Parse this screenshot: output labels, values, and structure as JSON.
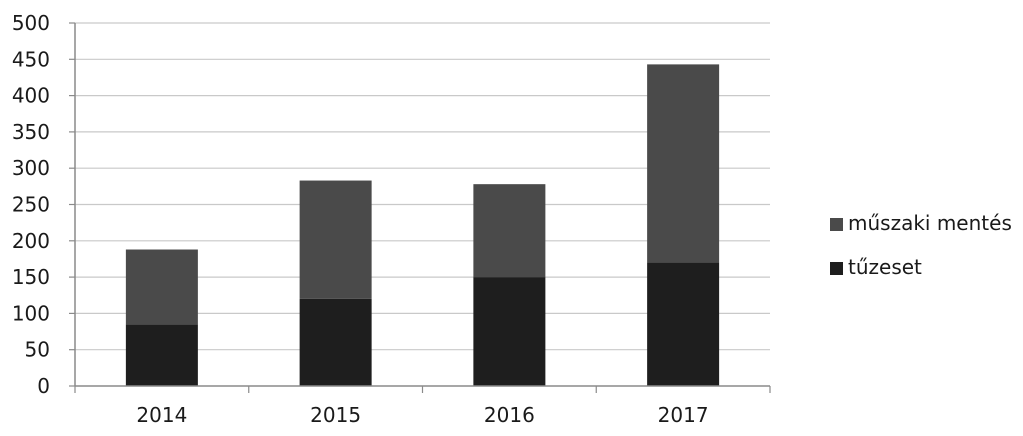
{
  "chart_data": {
    "type": "bar",
    "stacked": true,
    "categories": [
      "2014",
      "2015",
      "2016",
      "2017"
    ],
    "series": [
      {
        "name": "tűzeset",
        "values": [
          85,
          120,
          150,
          170
        ],
        "color": "#1e1e1e"
      },
      {
        "name": "műszaki mentés",
        "values": [
          103,
          163,
          128,
          273
        ],
        "color": "#4a4a4a"
      }
    ],
    "ylim": [
      0,
      500
    ],
    "yticks": [
      "0",
      "50",
      "100",
      "150",
      "200",
      "250",
      "300",
      "350",
      "400",
      "450",
      "500"
    ],
    "grid": true,
    "legend": {
      "position": "right",
      "order": [
        "műszaki mentés",
        "tűzeset"
      ]
    }
  }
}
